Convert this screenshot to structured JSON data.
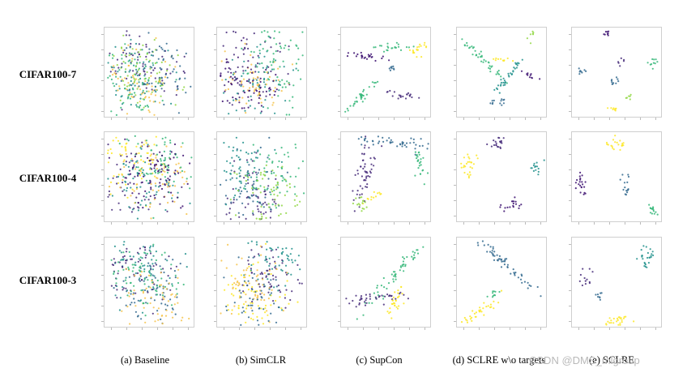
{
  "rows": [
    {
      "label": "CIFAR100-7"
    },
    {
      "label": "CIFAR100-4"
    },
    {
      "label": "CIFAR100-3"
    }
  ],
  "columns": [
    {
      "label": "(a) Baseline"
    },
    {
      "label": "(b) SimCLR"
    },
    {
      "label": "(c) SupCon"
    },
    {
      "label": "(d) SCLRE w\\o targets"
    },
    {
      "label": "(e) SCLRE"
    }
  ],
  "watermark": "CSDN @DMS_mlgroup",
  "palette": {
    "purple": "#472c7a",
    "dark_purple": "#3b0f70",
    "blue": "#31688e",
    "teal": "#21918c",
    "green": "#35b779",
    "light_green": "#90d743",
    "yellow": "#fde725",
    "orange_yellow": "#f6c34a"
  }
}
